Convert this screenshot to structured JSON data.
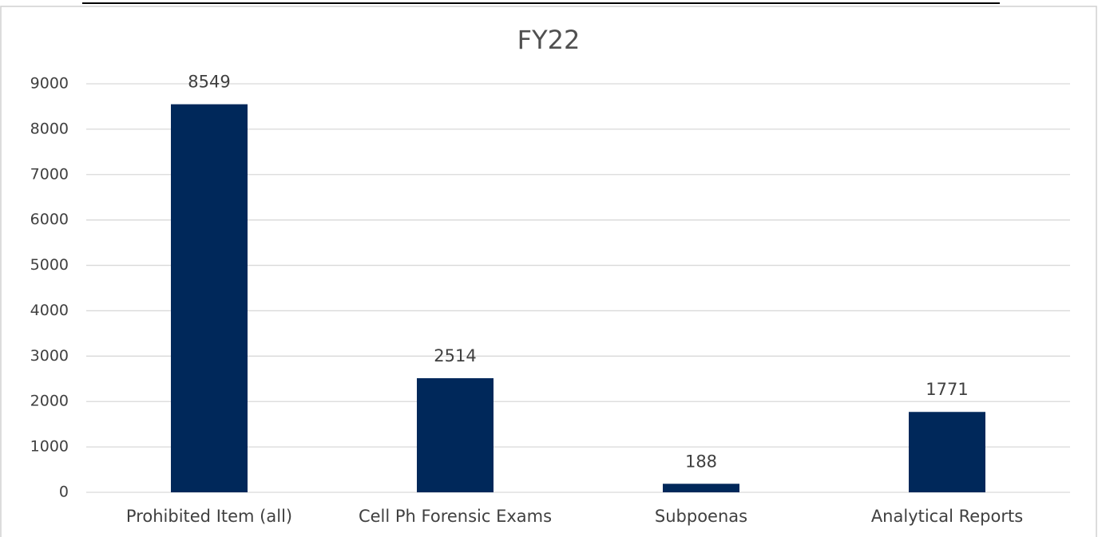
{
  "chart_data": {
    "type": "bar",
    "title": "FY22",
    "categories": [
      "Prohibited Item (all)",
      "Cell Ph Forensic Exams",
      "Subpoenas",
      "Analytical Reports"
    ],
    "values": [
      8549,
      2514,
      188,
      1771
    ],
    "color": "#00285a",
    "ylim": [
      0,
      9000
    ],
    "yticks": [
      0,
      1000,
      2000,
      3000,
      4000,
      5000,
      6000,
      7000,
      8000,
      9000
    ],
    "grid": true
  }
}
